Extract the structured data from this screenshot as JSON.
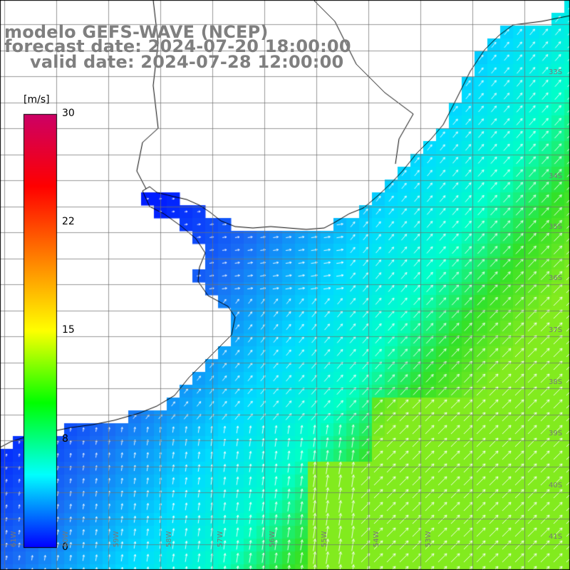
{
  "titles": {
    "model": "modelo GEFS-WAVE (NCEP)",
    "forecast": "forecast date: 2024-07-20 18:00:00",
    "valid": "valid date: 2024-07-28 12:00:00"
  },
  "colorbar": {
    "unit": "[m/s]",
    "ticks": [
      "30",
      "22",
      "15",
      "8",
      "0"
    ],
    "range": [
      0,
      30
    ],
    "colors": [
      "#0000ff",
      "#00ffff",
      "#00ff00",
      "#ffff00",
      "#ff8000",
      "#ff0000",
      "#cc0066"
    ]
  },
  "grid": {
    "lat_labels": [
      "33S",
      "34S",
      "35S",
      "36S",
      "37S",
      "38S",
      "39S",
      "40S",
      "41S"
    ],
    "lon_labels": [
      "61W",
      "60W",
      "59W",
      "58W",
      "57W",
      "56W",
      "55W",
      "54W",
      "53W"
    ]
  },
  "field": {
    "quantity": "wind speed",
    "low_color": "#1a3ef0",
    "high_color": "#44e21e",
    "land_color": "#ffffff"
  }
}
